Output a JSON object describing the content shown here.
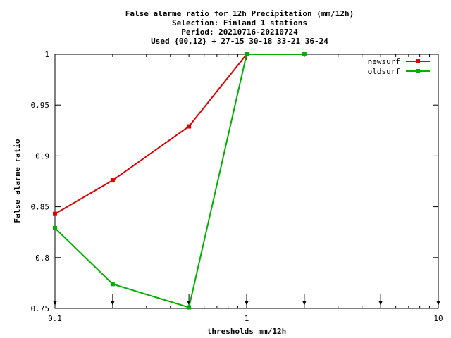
{
  "chart_data": {
    "type": "line",
    "title_lines": [
      "False alarme ratio  for 12h Precipitation (mm/12h)",
      "Selection: Finland      1 stations",
      "Period: 20210716-20210724",
      "Used {00,12} + 27-15 30-18 33-21 36-24"
    ],
    "xlabel": "thresholds mm/12h",
    "ylabel": "False alarme ratio",
    "x_scale": "log",
    "xlim": [
      0.1,
      10
    ],
    "ylim": [
      0.75,
      1
    ],
    "x_ticks": [
      {
        "value": 0.1,
        "label": "0.1"
      },
      {
        "value": 1,
        "label": "1"
      },
      {
        "value": 10,
        "label": "10"
      }
    ],
    "y_ticks": [
      {
        "value": 0.75,
        "label": "0.75"
      },
      {
        "value": 0.8,
        "label": "0.8"
      },
      {
        "value": 0.85,
        "label": "0.85"
      },
      {
        "value": 0.9,
        "label": "0.9"
      },
      {
        "value": 0.95,
        "label": "0.95"
      },
      {
        "value": 1,
        "label": "1"
      }
    ],
    "threshold_markers": [
      0.1,
      0.2,
      0.5,
      1,
      2,
      5,
      10
    ],
    "legend_position": "top-right",
    "grid": false,
    "series": [
      {
        "name": "newsurf",
        "color": "#e00000",
        "x": [
          0.1,
          0.2,
          0.5,
          1
        ],
        "y": [
          0.843,
          0.876,
          0.929,
          1.0
        ]
      },
      {
        "name": "oldsurf",
        "color": "#00b000",
        "x": [
          0.1,
          0.2,
          0.5,
          1,
          2
        ],
        "y": [
          0.829,
          0.774,
          0.751,
          1.0,
          1.0
        ]
      }
    ]
  }
}
